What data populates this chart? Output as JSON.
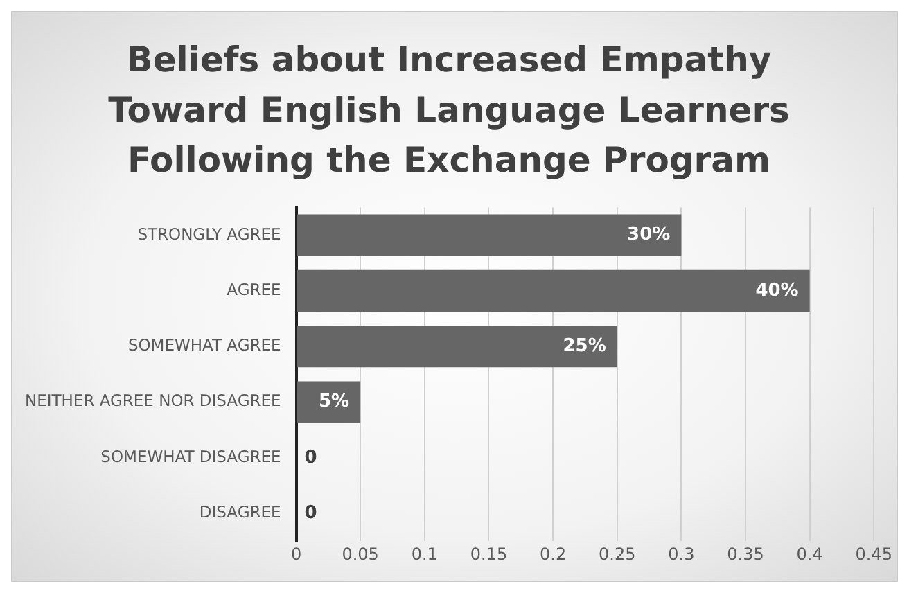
{
  "chart_data": {
    "type": "bar",
    "orientation": "horizontal",
    "title": "Beliefs about Increased Empathy Toward English Language Learners Following the Exchange Program",
    "categories": [
      "STRONGLY AGREE",
      "AGREE",
      "SOMEWHAT AGREE",
      "NEITHER AGREE NOR DISAGREE",
      "SOMEWHAT DISAGREE",
      "DISAGREE"
    ],
    "values": [
      0.3,
      0.4,
      0.25,
      0.05,
      0,
      0
    ],
    "value_labels": [
      "30%",
      "40%",
      "25%",
      "5%",
      "0",
      "0"
    ],
    "color": "#666666",
    "xlim": [
      0,
      0.45
    ],
    "xticks": [
      0,
      0.05,
      0.1,
      0.15,
      0.2,
      0.25,
      0.3,
      0.35,
      0.4,
      0.45
    ],
    "grid": "x",
    "legend": false
  }
}
